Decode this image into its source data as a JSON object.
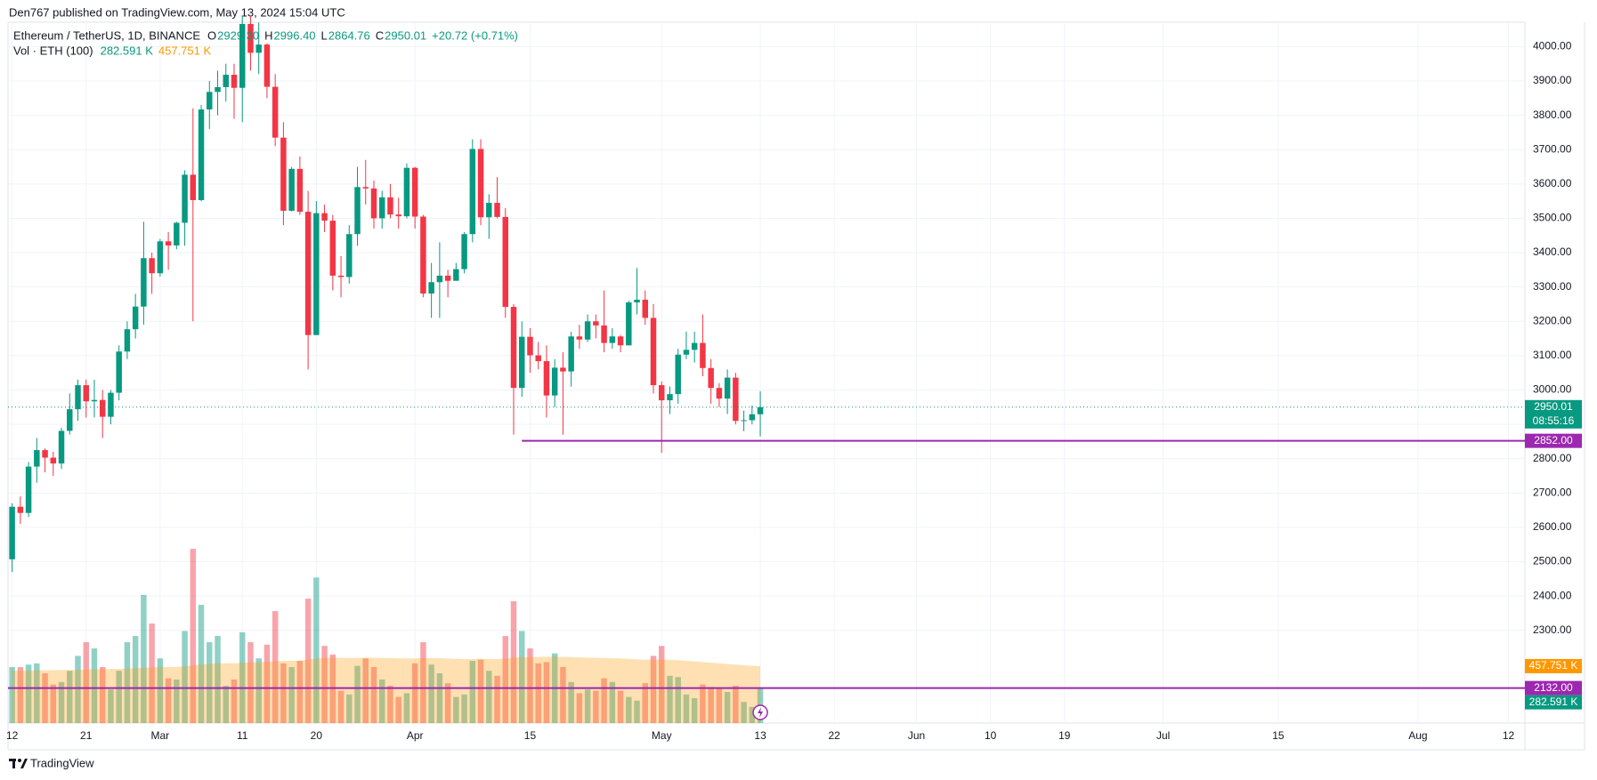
{
  "header": {
    "publisher": "Den767 published on TradingView.com, May 13, 2024 15:04 UTC"
  },
  "footer": {
    "brand": "TradingView"
  },
  "chart_data": {
    "type": "candlestick",
    "legend": {
      "symbol": "Ethereum / TetherUS, 1D, BINANCE",
      "fields": [
        {
          "key": "O",
          "value": "2929.30"
        },
        {
          "key": "H",
          "value": "2996.40"
        },
        {
          "key": "L",
          "value": "2864.76"
        },
        {
          "key": "C",
          "value": "2950.01"
        }
      ],
      "change": "+20.72 (+0.71%)"
    },
    "open": [
      2507,
      2660,
      2642,
      2777,
      2825,
      2803,
      2786,
      2881,
      2944,
      3014,
      2967,
      2971,
      2922,
      2992,
      3112,
      3177,
      3243,
      3384,
      3340,
      3433,
      3421,
      3487,
      3627,
      3553,
      3817,
      3868,
      3882,
      3918,
      3880,
      4066,
      3982,
      4006,
      3883,
      3735,
      3522,
      3644,
      3519,
      3160,
      3515,
      3493,
      3333,
      3329,
      3454,
      3591,
      3587,
      3500,
      3561,
      3511,
      3506,
      3647,
      3505,
      3281,
      3314,
      3333,
      3318,
      3352,
      3454,
      3702,
      3503,
      3545,
      3504,
      3242,
      3006,
      3155,
      3101,
      3084,
      2984,
      3065,
      3054,
      3156,
      3147,
      3200,
      3188,
      3137,
      3156,
      3130,
      3255,
      3263,
      3210,
      3014,
      2970,
      2988,
      3103,
      3117,
      3137,
      3064,
      3006,
      2975,
      3036,
      2910,
      2912,
      2929.3
    ],
    "high": [
      2670,
      2690,
      2790,
      2860,
      2830,
      2820,
      2890,
      2990,
      3030,
      3030,
      3030,
      3000,
      3000,
      3130,
      3200,
      3280,
      3490,
      3400,
      3440,
      3460,
      3490,
      3640,
      3820,
      3830,
      3900,
      3930,
      3950,
      3950,
      4090,
      4090,
      4070,
      4010,
      3920,
      3780,
      3650,
      3680,
      3580,
      3550,
      3540,
      3510,
      3390,
      3480,
      3650,
      3670,
      3610,
      3580,
      3600,
      3560,
      3660,
      3650,
      3510,
      3370,
      3430,
      3350,
      3370,
      3460,
      3730,
      3730,
      3570,
      3620,
      3530,
      3250,
      3200,
      3180,
      3140,
      3130,
      3090,
      3110,
      3170,
      3190,
      3220,
      3220,
      3290,
      3180,
      3160,
      3260,
      3355,
      3290,
      3250,
      3025,
      3010,
      3120,
      3170,
      3170,
      3220,
      3090,
      3020,
      3060,
      3050,
      2940,
      2955,
      2996.4
    ],
    "low": [
      2470,
      2610,
      2630,
      2730,
      2760,
      2750,
      2770,
      2870,
      2910,
      2920,
      2920,
      2860,
      2900,
      2970,
      3090,
      3150,
      3190,
      3280,
      3330,
      3350,
      3410,
      3420,
      3200,
      3550,
      3760,
      3800,
      3840,
      3790,
      3780,
      3930,
      3920,
      3850,
      3710,
      3480,
      3520,
      3510,
      3060,
      3160,
      3460,
      3290,
      3270,
      3310,
      3420,
      3540,
      3470,
      3470,
      3500,
      3470,
      3500,
      3470,
      3270,
      3210,
      3210,
      3270,
      3320,
      3340,
      3430,
      3480,
      3440,
      3500,
      3210,
      2870,
      2980,
      3050,
      3060,
      2920,
      2950,
      2870,
      3010,
      3120,
      3140,
      3150,
      3110,
      3120,
      3110,
      3130,
      3220,
      3190,
      2990,
      2817,
      2930,
      2960,
      3090,
      3080,
      3040,
      2960,
      2950,
      2930,
      2900,
      2880,
      2900,
      2864.76
    ],
    "close": [
      2660,
      2642,
      2777,
      2825,
      2803,
      2786,
      2881,
      2944,
      3014,
      2967,
      2971,
      2922,
      2992,
      3112,
      3177,
      3243,
      3384,
      3340,
      3433,
      3421,
      3487,
      3627,
      3553,
      3817,
      3868,
      3882,
      3918,
      3880,
      4066,
      3982,
      4006,
      3883,
      3735,
      3522,
      3644,
      3519,
      3160,
      3515,
      3493,
      3333,
      3329,
      3454,
      3591,
      3587,
      3500,
      3561,
      3511,
      3506,
      3647,
      3505,
      3281,
      3314,
      3333,
      3318,
      3352,
      3454,
      3702,
      3503,
      3545,
      3504,
      3242,
      3006,
      3155,
      3101,
      3084,
      2984,
      3065,
      3054,
      3156,
      3147,
      3200,
      3188,
      3137,
      3156,
      3130,
      3255,
      3263,
      3210,
      3014,
      2970,
      2988,
      3103,
      3117,
      3137,
      3064,
      3006,
      2975,
      3036,
      2910,
      2912,
      2929.3,
      2950.01
    ],
    "up_color": "#089981",
    "down_color": "#f23645",
    "xlim": [
      -0.5,
      184
    ],
    "xticks": [
      {
        "value": 0,
        "label": "12"
      },
      {
        "value": 9,
        "label": "21"
      },
      {
        "value": 18,
        "label": "Mar"
      },
      {
        "value": 28,
        "label": "11"
      },
      {
        "value": 37,
        "label": "20"
      },
      {
        "value": 49,
        "label": "Apr"
      },
      {
        "value": 63,
        "label": "15"
      },
      {
        "value": 79,
        "label": "May"
      },
      {
        "value": 91,
        "label": "13"
      },
      {
        "value": 100,
        "label": "22"
      },
      {
        "value": 110,
        "label": "Jun"
      },
      {
        "value": 119,
        "label": "10"
      },
      {
        "value": 128,
        "label": "19"
      },
      {
        "value": 140,
        "label": "Jul"
      },
      {
        "value": 154,
        "label": "15"
      },
      {
        "value": 171,
        "label": "Aug"
      },
      {
        "value": 182,
        "label": "12"
      }
    ],
    "ylim": [
      2030,
      4071
    ],
    "yticks": [
      {
        "value": 2300,
        "label": "2300.00"
      },
      {
        "value": 2400,
        "label": "2400.00"
      },
      {
        "value": 2500,
        "label": "2500.00"
      },
      {
        "value": 2600,
        "label": "2600.00"
      },
      {
        "value": 2700,
        "label": "2700.00"
      },
      {
        "value": 2800,
        "label": "2800.00"
      },
      {
        "value": 2900,
        "label": "2900.00"
      },
      {
        "value": 3000,
        "label": "3000.00"
      },
      {
        "value": 3100,
        "label": "3100.00"
      },
      {
        "value": 3200,
        "label": "3200.00"
      },
      {
        "value": 3300,
        "label": "3300.00"
      },
      {
        "value": 3400,
        "label": "3400.00"
      },
      {
        "value": 3500,
        "label": "3500.00"
      },
      {
        "value": 3600,
        "label": "3600.00"
      },
      {
        "value": 3700,
        "label": "3700.00"
      },
      {
        "value": 3800,
        "label": "3800.00"
      },
      {
        "value": 3900,
        "label": "3900.00"
      },
      {
        "value": 4000,
        "label": "4000.00"
      }
    ],
    "grid": true,
    "last_price_label": "2950.01",
    "countdown": "08:55:16",
    "levels": [
      {
        "value": 2852,
        "label": "2852.00",
        "from": 62,
        "color": "#9c27b0"
      },
      {
        "value": 2132,
        "label": "2132.00",
        "color": "#9c27b0"
      }
    ],
    "volume": {
      "title": "Vol · ETH (100)",
      "values": [
        450,
        450,
        470,
        480,
        400,
        310,
        330,
        420,
        540,
        650,
        600,
        450,
        270,
        420,
        650,
        700,
        1030,
        800,
        520,
        360,
        350,
        740,
        1400,
        950,
        650,
        700,
        300,
        350,
        730,
        650,
        520,
        630,
        900,
        480,
        450,
        500,
        1000,
        1170,
        620,
        550,
        260,
        230,
        460,
        520,
        450,
        350,
        300,
        210,
        240,
        480,
        650,
        470,
        400,
        320,
        210,
        230,
        500,
        510,
        420,
        380,
        700,
        980,
        740,
        600,
        480,
        490,
        560,
        450,
        330,
        240,
        270,
        260,
        360,
        330,
        260,
        210,
        180,
        320,
        540,
        620,
        380,
        370,
        230,
        200,
        310,
        290,
        280,
        250,
        300,
        170,
        130,
        282.591
      ],
      "ma": [
        420,
        421,
        422,
        423,
        424,
        425,
        426,
        427,
        428,
        430,
        432,
        433,
        434,
        436,
        438,
        440,
        445,
        448,
        450,
        451,
        452,
        455,
        465,
        472,
        476,
        480,
        480,
        481,
        485,
        488,
        490,
        492,
        497,
        499,
        500,
        502,
        510,
        520,
        523,
        525,
        524,
        523,
        524,
        525,
        525,
        524,
        523,
        521,
        519,
        520,
        522,
        522,
        521,
        519,
        516,
        514,
        515,
        516,
        516,
        515,
        518,
        525,
        530,
        531,
        532,
        533,
        533,
        532,
        530,
        528,
        526,
        524,
        523,
        521,
        519,
        516,
        512,
        510,
        510,
        511,
        508,
        505,
        500,
        496,
        490,
        485,
        480,
        475,
        470,
        465,
        461,
        457.751
      ],
      "vlim": [
        0,
        5632
      ],
      "last_label": "282.591 K",
      "ma_last_label": "457.751 K",
      "ma_color": "#ff9800"
    }
  }
}
